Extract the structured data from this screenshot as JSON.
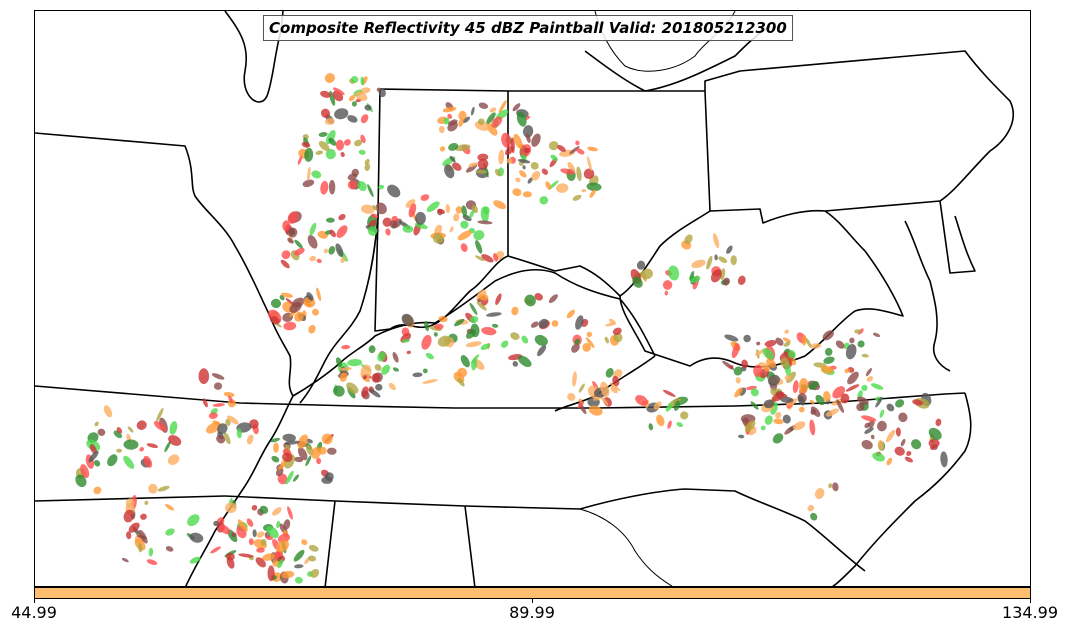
{
  "title": "Composite Reflectivity 45 dBZ Paintball Valid: 201805212300",
  "colorbar": {
    "color": "#fdbf6f",
    "ticks": [
      "44.99",
      "89.99",
      "134.99"
    ]
  },
  "paintball_colors": [
    "#ff4d4d",
    "#ff9933",
    "#fdae61",
    "#4dd94d",
    "#2e8b2e",
    "#b0a642",
    "#8b4a4a",
    "#555555",
    "#cc3333"
  ],
  "colors": {
    "state_lines": "#000000",
    "background": "#ffffff"
  }
}
